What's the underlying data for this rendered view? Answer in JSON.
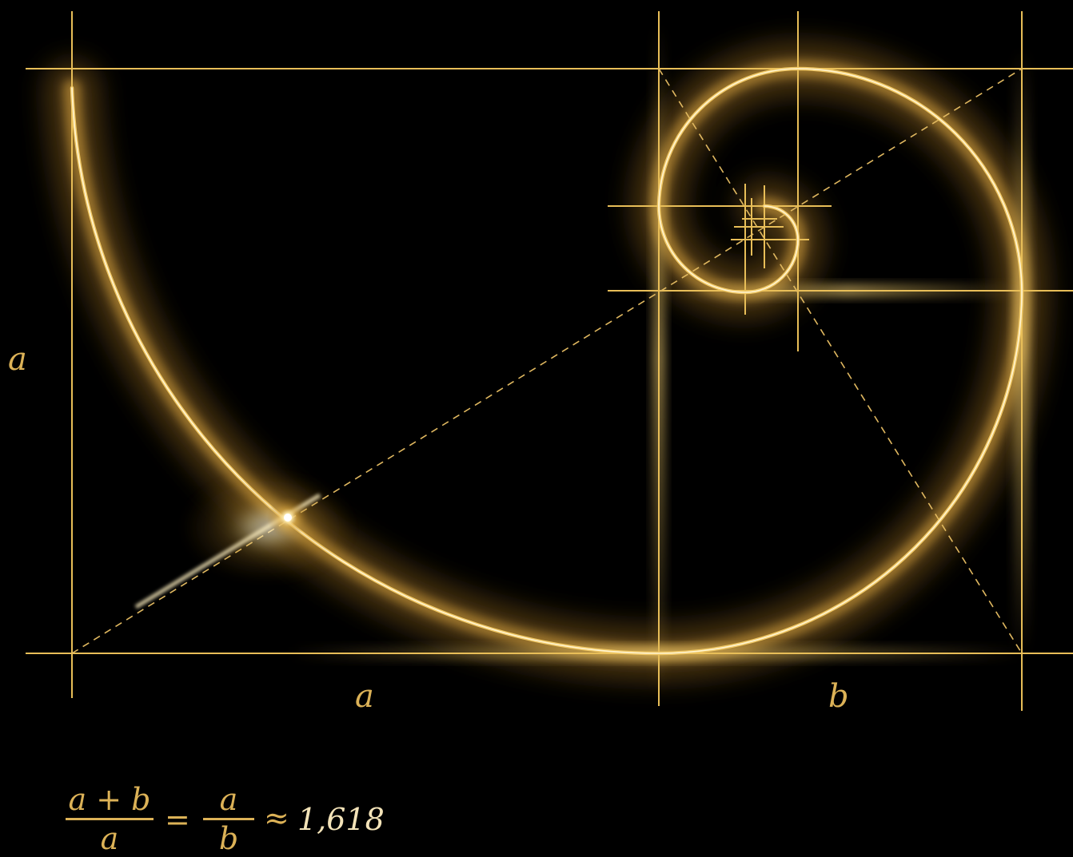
{
  "colors": {
    "background": "#000000",
    "gold": "#e8be58",
    "gold_light": "#fff4c8",
    "text": "#dcb257",
    "bright_text": "#f3e3b8"
  },
  "labels": {
    "side_a": "a",
    "bottom_a": "a",
    "bottom_b": "b"
  },
  "formula": {
    "left_numerator": "a + b",
    "left_denominator": "a",
    "equals": "=",
    "right_numerator": "a",
    "right_denominator": "b",
    "approx": "≈",
    "value": "1,618"
  }
}
